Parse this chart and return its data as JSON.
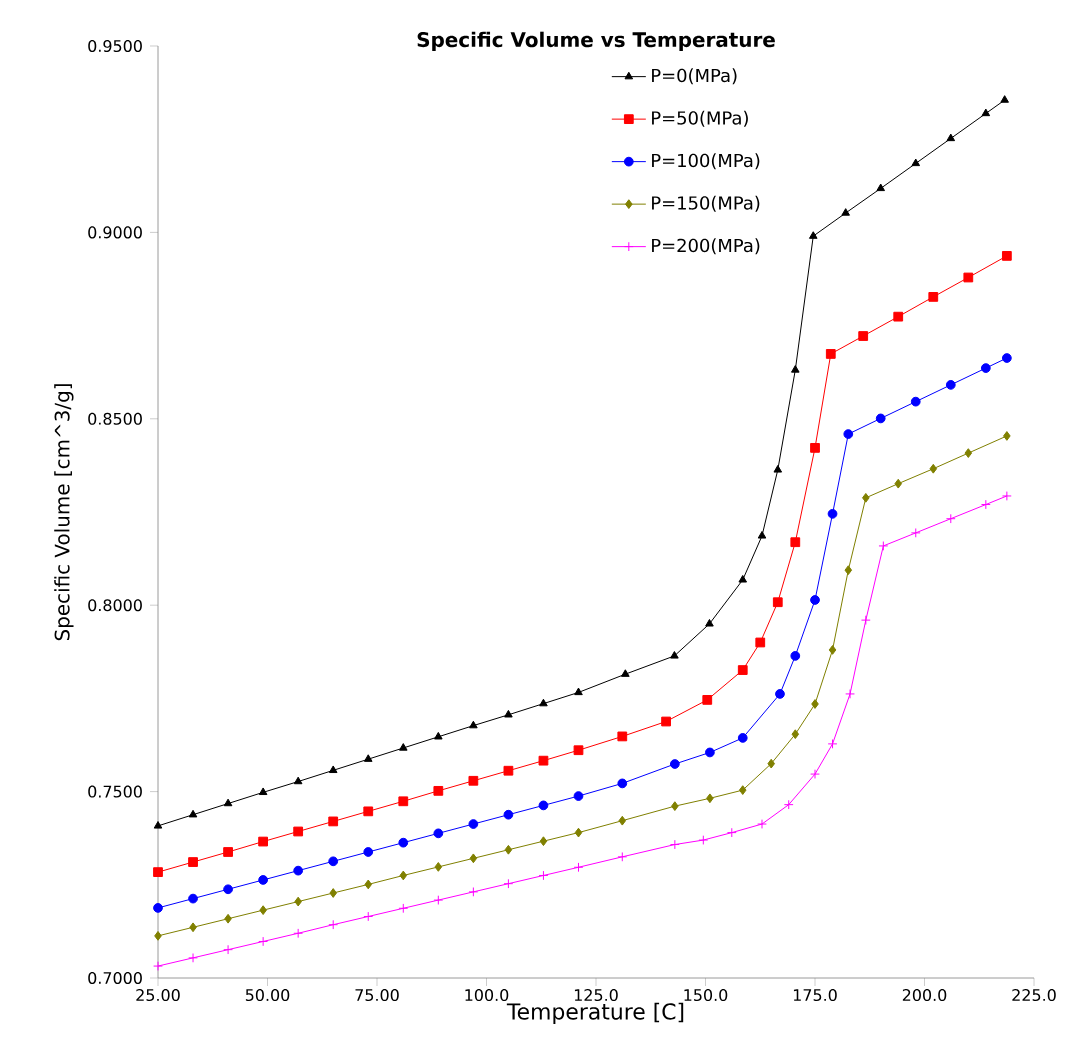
{
  "chart_data": {
    "type": "line",
    "title": "Specific Volume vs Temperature",
    "xlabel": "Temperature [C]",
    "ylabel": "Specific Volume [cm^3/g]",
    "xlim": [
      25,
      225
    ],
    "ylim": [
      0.7,
      0.95
    ],
    "xticks": [
      {
        "value": 25,
        "label": "25.00"
      },
      {
        "value": 50,
        "label": "50.00"
      },
      {
        "value": 75,
        "label": "75.00"
      },
      {
        "value": 100,
        "label": "100.0"
      },
      {
        "value": 125,
        "label": "125.0"
      },
      {
        "value": 150,
        "label": "150.0"
      },
      {
        "value": 175,
        "label": "175.0"
      },
      {
        "value": 200,
        "label": "200.0"
      },
      {
        "value": 225,
        "label": "225.0"
      }
    ],
    "yticks": [
      {
        "value": 0.7,
        "label": "0.7000"
      },
      {
        "value": 0.75,
        "label": "0.7500"
      },
      {
        "value": 0.8,
        "label": "0.8000"
      },
      {
        "value": 0.85,
        "label": "0.8500"
      },
      {
        "value": 0.9,
        "label": "0.9000"
      },
      {
        "value": 0.95,
        "label": "0.9500"
      }
    ],
    "grid": false,
    "legend": "top right",
    "line_style": "solid",
    "series": [
      {
        "name": "P=0(MPa)",
        "color": "#000000",
        "marker": "triangle",
        "x": [
          25,
          33,
          41,
          49,
          57,
          65,
          73,
          81,
          89,
          97,
          105,
          113,
          121,
          131.7,
          142.9,
          150.9,
          158.5,
          162.9,
          166.5,
          170.5,
          174.6,
          182,
          190,
          198,
          206,
          214,
          218.3
        ],
        "values": [
          0.7408,
          0.7438,
          0.7468,
          0.7498,
          0.7527,
          0.7557,
          0.7587,
          0.7617,
          0.7647,
          0.7677,
          0.7706,
          0.7736,
          0.7766,
          0.7815,
          0.7864,
          0.795,
          0.8068,
          0.8186,
          0.8363,
          0.8631,
          0.899,
          0.9052,
          0.9118,
          0.9185,
          0.9252,
          0.9319,
          0.9355
        ]
      },
      {
        "name": "P=50(MPa)",
        "color": "#ff0000",
        "marker": "square",
        "x": [
          25,
          33,
          41,
          49,
          57,
          65,
          73,
          81,
          89,
          97,
          105,
          113,
          121,
          131,
          141,
          150.4,
          158.5,
          162.5,
          166.5,
          170.5,
          175,
          178.6,
          186,
          194,
          202,
          210,
          218.8
        ],
        "values": [
          0.7284,
          0.7311,
          0.7338,
          0.7366,
          0.7393,
          0.742,
          0.7447,
          0.7474,
          0.7502,
          0.7529,
          0.7556,
          0.7583,
          0.7611,
          0.7648,
          0.7688,
          0.7746,
          0.7826,
          0.79,
          0.8008,
          0.8169,
          0.8422,
          0.8674,
          0.8722,
          0.8774,
          0.8827,
          0.8879,
          0.8937
        ]
      },
      {
        "name": "P=100(MPa)",
        "color": "#0000ff",
        "marker": "circle",
        "x": [
          25,
          33,
          41,
          49,
          57,
          65,
          73,
          81,
          89,
          97,
          105,
          113,
          121,
          131,
          143,
          151,
          158.5,
          167,
          170.5,
          175,
          179,
          182.6,
          190,
          198,
          206,
          214,
          218.8
        ],
        "values": [
          0.7188,
          0.7213,
          0.7238,
          0.7263,
          0.7288,
          0.7313,
          0.7338,
          0.7363,
          0.7388,
          0.7413,
          0.7438,
          0.7463,
          0.7488,
          0.7522,
          0.7574,
          0.7605,
          0.7644,
          0.7762,
          0.7864,
          0.8014,
          0.8245,
          0.8459,
          0.8501,
          0.8546,
          0.8591,
          0.8636,
          0.8663
        ]
      },
      {
        "name": "P=150(MPa)",
        "color": "#808000",
        "marker": "diamond",
        "x": [
          25,
          33,
          41,
          49,
          57,
          65,
          73,
          81,
          89,
          97,
          105,
          113,
          121,
          131,
          143,
          151,
          158.5,
          165,
          170.5,
          175,
          179,
          182.6,
          186.6,
          194,
          202,
          210,
          218.8
        ],
        "values": [
          0.7113,
          0.7136,
          0.7159,
          0.7182,
          0.7205,
          0.7228,
          0.7251,
          0.7275,
          0.7298,
          0.7321,
          0.7344,
          0.7367,
          0.739,
          0.7422,
          0.7461,
          0.7482,
          0.7504,
          0.7575,
          0.7654,
          0.7735,
          0.788,
          0.8094,
          0.8288,
          0.8326,
          0.8366,
          0.8408,
          0.8454
        ]
      },
      {
        "name": "P=200(MPa)",
        "color": "#ff00ff",
        "marker": "cross",
        "x": [
          25,
          33,
          41,
          49,
          57,
          65,
          73,
          81,
          89,
          97,
          105,
          113,
          121,
          131,
          143,
          149.5,
          156,
          162.9,
          169,
          175,
          179,
          183,
          186.6,
          190.6,
          198,
          206,
          214,
          218.8
        ],
        "values": [
          0.7032,
          0.7054,
          0.7076,
          0.7098,
          0.712,
          0.7143,
          0.7165,
          0.7187,
          0.7209,
          0.7231,
          0.7253,
          0.7275,
          0.7297,
          0.7325,
          0.7358,
          0.737,
          0.739,
          0.7413,
          0.7465,
          0.7547,
          0.7628,
          0.7762,
          0.796,
          0.8159,
          0.8194,
          0.8232,
          0.827,
          0.8293
        ]
      }
    ]
  }
}
